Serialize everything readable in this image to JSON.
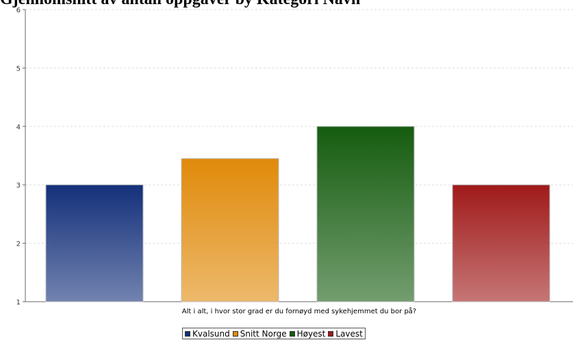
{
  "chart_data": {
    "type": "bar",
    "title": "Gjennomsnitt av antall oppgaver by Kategori Navn",
    "xlabel": "Alt i alt, i hvor stor grad er du fornøyd med sykehjemmet du bor på?",
    "ylabel": "",
    "ylim": [
      1,
      6
    ],
    "yticks": [
      "1",
      "2",
      "3",
      "4",
      "5",
      "6"
    ],
    "grid": true,
    "legend_position": "bottom",
    "series": [
      {
        "name": "Kvalsund",
        "value": 3,
        "color": "#14307a"
      },
      {
        "name": "Snitt Norge",
        "value": 3.45,
        "color": "#e08a0a"
      },
      {
        "name": "Høyest",
        "value": 4,
        "color": "#155c0f"
      },
      {
        "name": "Lavest",
        "value": 3,
        "color": "#a01a1a"
      }
    ]
  }
}
